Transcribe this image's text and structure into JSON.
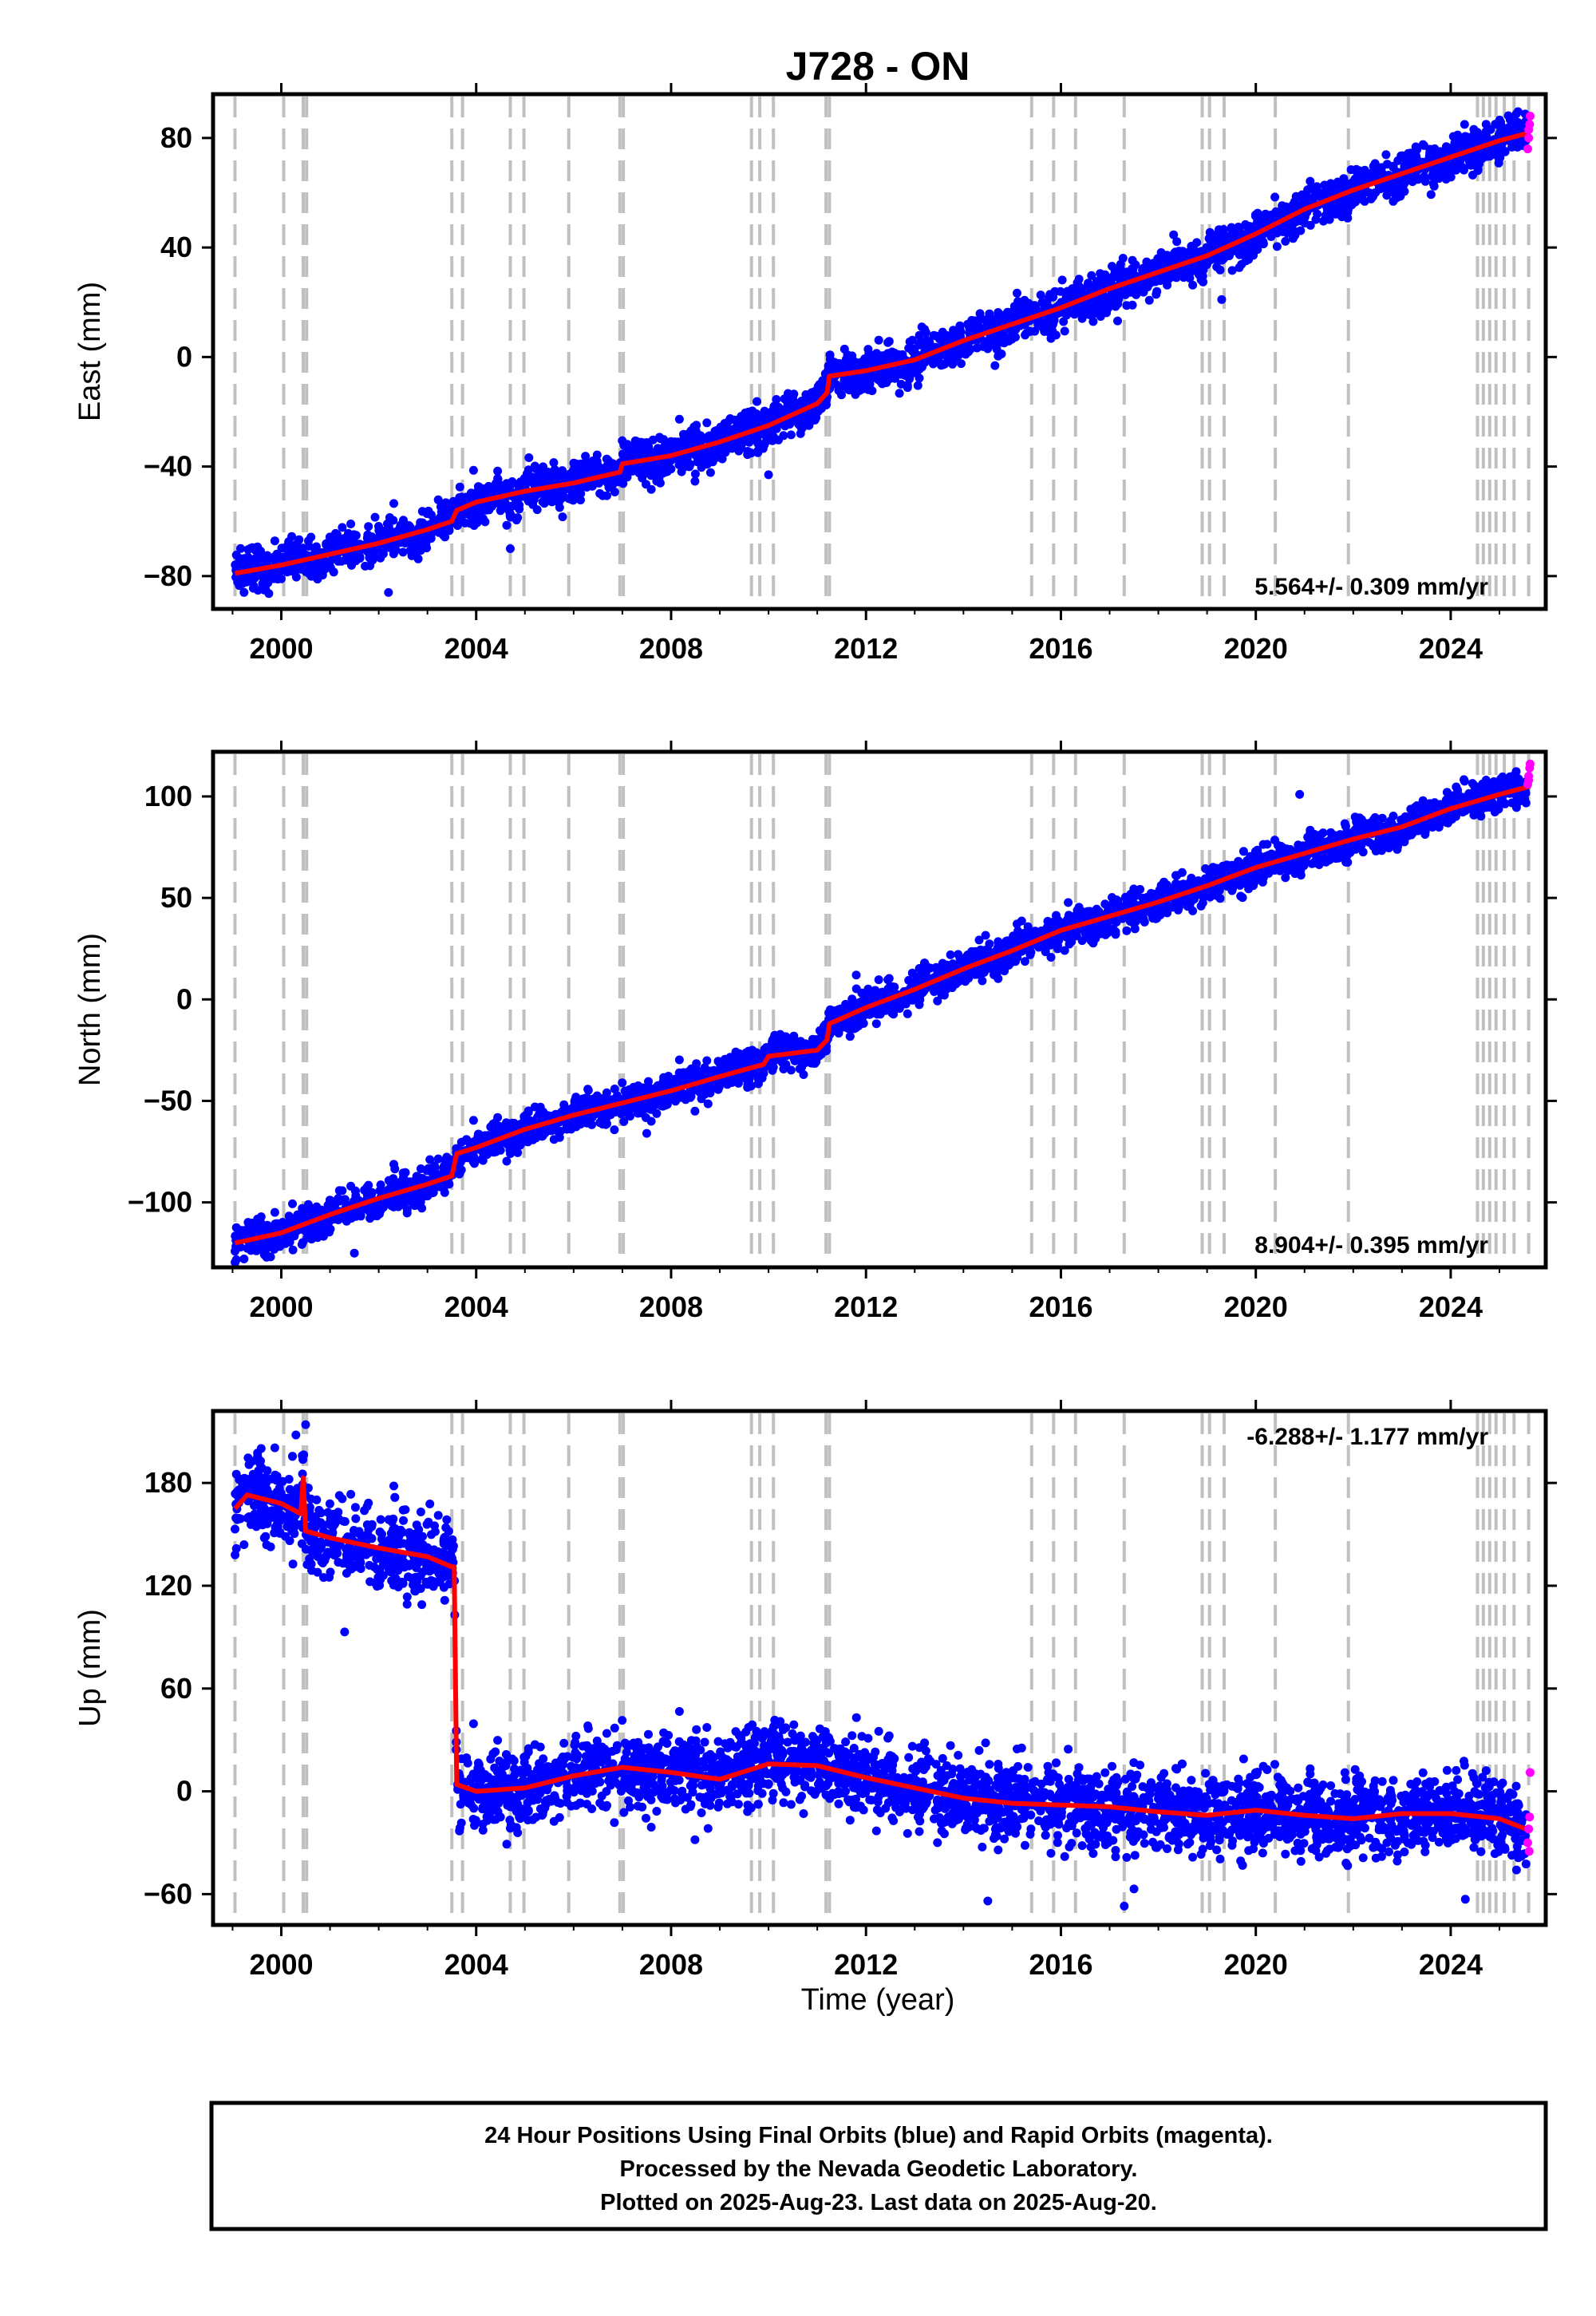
{
  "figure": {
    "title": "J728 - ON",
    "xlabel": "Time (year)",
    "footer_lines": [
      "24 Hour Positions Using Final Orbits (blue) and Rapid Orbits (magenta).",
      "Processed by the Nevada Geodetic Laboratory.",
      "Plotted on 2025-Aug-23. Last data on 2025-Aug-20."
    ]
  },
  "colors": {
    "final_orbits": "#0000ff",
    "rapid_orbits": "#ff00ff",
    "model": "#ff0000",
    "event_lines": "#c0c0c0",
    "frame": "#000000"
  },
  "chart_data": [
    {
      "type": "scatter",
      "component": "east",
      "ylabel": "East (mm)",
      "xlim": [
        1998.6,
        2025.95
      ],
      "ylim": [
        -92,
        96
      ],
      "xticks": [
        2000,
        2004,
        2008,
        2012,
        2016,
        2020,
        2024
      ],
      "yticks": [
        -80,
        -40,
        0,
        40,
        80
      ],
      "rate_label": "5.564+/- 0.309 mm/yr",
      "rate_position": "bottom-right",
      "data_range": [
        1999.05,
        2025.63
      ],
      "scatter_sd": 3.5,
      "model": {
        "x": [
          1999.05,
          2000.0,
          2001.0,
          2002.0,
          2003.0,
          2003.5,
          2003.6,
          2004.0,
          2005.0,
          2006.0,
          2006.95,
          2007.0,
          2008.0,
          2009.0,
          2010.0,
          2011.0,
          2011.2,
          2011.25,
          2012.0,
          2013.0,
          2014.0,
          2015.0,
          2016.0,
          2017.0,
          2018.0,
          2019.0,
          2020.0,
          2021.0,
          2022.0,
          2023.0,
          2024.0,
          2025.0,
          2025.63
        ],
        "y": [
          -79,
          -76,
          -72,
          -68,
          -63,
          -60,
          -56,
          -53,
          -49,
          -46,
          -42,
          -39,
          -36,
          -31,
          -25,
          -17,
          -13,
          -7,
          -5,
          -1,
          6,
          12,
          18,
          25,
          31,
          37,
          45,
          54,
          61,
          67,
          73,
          79,
          82
        ]
      },
      "rapid": {
        "x": [
          2025.58,
          2025.6,
          2025.62,
          2025.63,
          2025.6
        ],
        "y": [
          76,
          80,
          85,
          88,
          83
        ]
      },
      "outliers": {
        "x": [
          2004.7,
          2010.0,
          2019.3,
          2002.2,
          2015.9
        ],
        "y": [
          -70,
          -43,
          21,
          -86,
          8
        ]
      }
    },
    {
      "type": "scatter",
      "component": "north",
      "ylabel": "North (mm)",
      "xlim": [
        1998.6,
        2025.95
      ],
      "ylim": [
        -132,
        122
      ],
      "xticks": [
        2000,
        2004,
        2008,
        2012,
        2016,
        2020,
        2024
      ],
      "yticks": [
        -100,
        -50,
        0,
        50,
        100
      ],
      "rate_label": "8.904+/- 0.395 mm/yr",
      "rate_position": "bottom-right",
      "data_range": [
        1999.05,
        2025.63
      ],
      "scatter_sd": 4.0,
      "model": {
        "x": [
          1999.05,
          2000.0,
          2001.0,
          2002.0,
          2003.0,
          2003.5,
          2003.6,
          2004.0,
          2005.0,
          2006.0,
          2007.0,
          2008.0,
          2009.0,
          2009.9,
          2010.0,
          2011.0,
          2011.2,
          2011.25,
          2012.0,
          2013.0,
          2014.0,
          2015.0,
          2016.0,
          2017.0,
          2018.0,
          2019.0,
          2020.0,
          2021.0,
          2022.0,
          2023.0,
          2024.0,
          2025.0,
          2025.63
        ],
        "y": [
          -120,
          -115,
          -106,
          -98,
          -91,
          -87,
          -76,
          -73,
          -64,
          -57,
          -51,
          -45,
          -38,
          -32,
          -28,
          -25,
          -20,
          -12,
          -4,
          5,
          15,
          24,
          34,
          41,
          48,
          56,
          65,
          72,
          79,
          85,
          94,
          101,
          105
        ]
      },
      "rapid": {
        "x": [
          2025.58,
          2025.6,
          2025.62,
          2025.63,
          2025.6
        ],
        "y": [
          106,
          110,
          114,
          116,
          108
        ]
      },
      "outliers": {
        "x": [
          2020.9,
          2007.5,
          2011.8,
          2001.5
        ],
        "y": [
          101,
          -66,
          12,
          -125
        ]
      }
    },
    {
      "type": "scatter",
      "component": "up",
      "ylabel": "Up (mm)",
      "xlim": [
        1998.6,
        2025.95
      ],
      "ylim": [
        -78,
        222
      ],
      "xticks": [
        2000,
        2004,
        2008,
        2012,
        2016,
        2020,
        2024
      ],
      "yticks": [
        -60,
        0,
        60,
        120,
        180
      ],
      "rate_label": "-6.288+/- 1.177 mm/yr",
      "rate_position": "top-right",
      "data_range": [
        1999.05,
        2025.63
      ],
      "scatter_sd": 11,
      "model": {
        "x": [
          1999.05,
          1999.3,
          2000.0,
          2000.4,
          2000.45,
          2000.5,
          2001.0,
          2002.0,
          2003.0,
          2003.5,
          2003.55,
          2003.6,
          2004.0,
          2005.0,
          2006.0,
          2007.0,
          2008.0,
          2009.0,
          2010.0,
          2011.0,
          2012.0,
          2013.0,
          2014.0,
          2015.0,
          2016.0,
          2017.0,
          2018.0,
          2019.0,
          2020.0,
          2021.0,
          2022.0,
          2023.0,
          2024.0,
          2025.0,
          2025.63
        ],
        "y": [
          165,
          173,
          168,
          162,
          183,
          152,
          148,
          142,
          137,
          131,
          131,
          4,
          0,
          2,
          9,
          14,
          11,
          7,
          16,
          15,
          8,
          2,
          -4,
          -7,
          -8,
          -9,
          -12,
          -14,
          -11,
          -14,
          -16,
          -13,
          -13,
          -16,
          -23
        ]
      },
      "rapid": {
        "x": [
          2025.58,
          2025.6,
          2025.62,
          2025.63,
          2025.61
        ],
        "y": [
          -30,
          -22,
          -15,
          11,
          -35
        ]
      },
      "outliers": {
        "x": [
          2000.3,
          2000.5,
          2001.3,
          2014.5,
          2017.3,
          2017.5,
          2024.3
        ],
        "y": [
          208,
          214,
          93,
          -64,
          -67,
          -57,
          -63
        ]
      }
    }
  ],
  "events": [
    1999.05,
    2000.05,
    2000.45,
    2000.52,
    2003.5,
    2003.72,
    2004.7,
    2004.98,
    2005.9,
    2006.95,
    2007.02,
    2009.65,
    2009.82,
    2010.1,
    2011.18,
    2011.25,
    2015.4,
    2015.85,
    2016.3,
    2017.3,
    2018.9,
    2019.05,
    2019.35,
    2020.4,
    2021.9,
    2024.55,
    2024.67,
    2024.8,
    2024.93,
    2025.1,
    2025.3,
    2025.6
  ]
}
